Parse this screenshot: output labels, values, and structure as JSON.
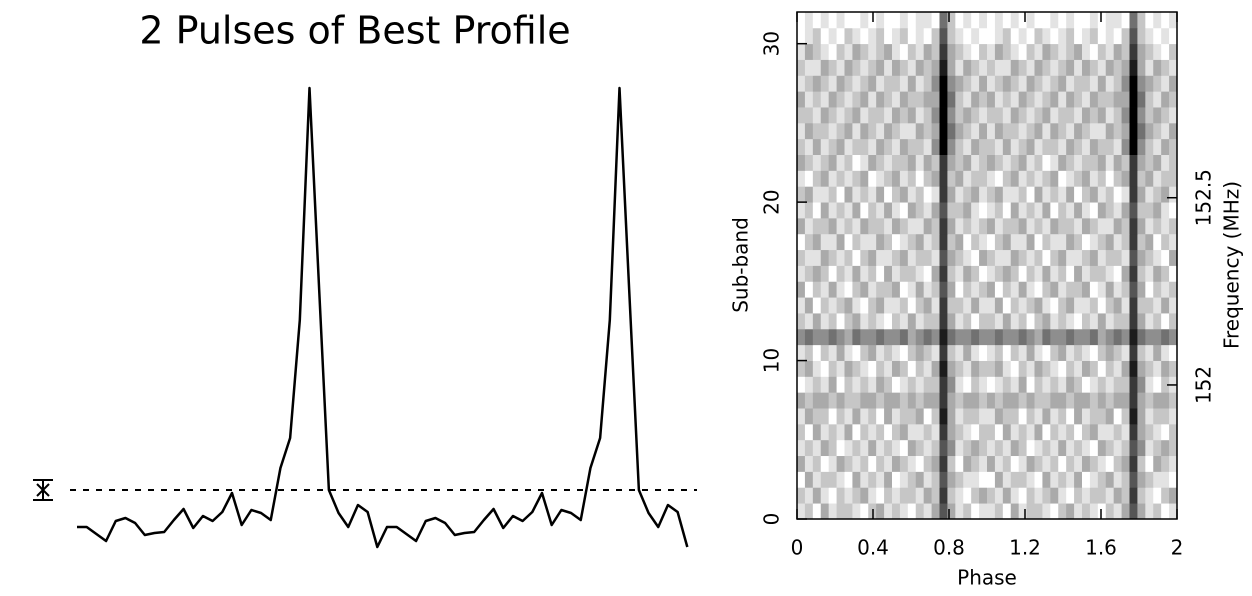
{
  "chart_data": [
    {
      "type": "line",
      "title": "2 Pulses of Best Profile",
      "color": "#000000",
      "xlim": [
        0,
        2
      ],
      "ylim": [
        0,
        470
      ],
      "baseline": 60,
      "error_bar": 10,
      "values": [
        23,
        23,
        16,
        9,
        29,
        32,
        27,
        15,
        17,
        18,
        30,
        41,
        22,
        34,
        29,
        38,
        57,
        25,
        40,
        37,
        30,
        82,
        112,
        230,
        462,
        260,
        60,
        37,
        23,
        45,
        38,
        3
      ]
    },
    {
      "type": "heatmap",
      "xlabel": "Phase",
      "ylabel": "Sub-band",
      "y2label": "Frequency (MHz)",
      "xlim": [
        0,
        2
      ],
      "xticks": [
        0,
        0.4,
        0.8,
        1.2,
        1.6,
        2
      ],
      "ylim": [
        0,
        32
      ],
      "yticks": [
        0,
        10,
        20,
        30
      ],
      "y2lim": [
        151.642,
        152.996
      ],
      "y2ticks": [
        152,
        152.5
      ],
      "zlim": [
        0,
        9
      ],
      "colormap": [
        "#ffffff",
        "#000000"
      ],
      "values": [
        [
          1,
          2,
          0,
          3,
          1,
          2,
          2,
          1,
          0,
          2,
          3,
          1,
          2,
          1,
          0,
          2,
          1,
          3,
          6,
          3,
          1,
          2,
          0,
          1
        ],
        [
          2,
          1,
          3,
          1,
          0,
          2,
          1,
          2,
          3,
          1,
          0,
          2,
          1,
          2,
          2,
          1,
          3,
          2,
          7,
          2,
          1,
          0,
          2,
          3
        ],
        [
          0,
          3,
          1,
          2,
          2,
          1,
          0,
          3,
          1,
          2,
          1,
          3,
          0,
          1,
          2,
          3,
          1,
          2,
          6,
          3,
          2,
          1,
          1,
          0
        ],
        [
          3,
          1,
          2,
          0,
          1,
          3,
          2,
          1,
          2,
          0,
          2,
          1,
          3,
          2,
          1,
          0,
          2,
          3,
          7,
          2,
          0,
          3,
          2,
          1
        ],
        [
          1,
          2,
          1,
          3,
          2,
          0,
          1,
          2,
          1,
          3,
          1,
          2,
          1,
          0,
          3,
          2,
          1,
          2,
          6,
          4,
          1,
          2,
          3,
          2
        ],
        [
          2,
          0,
          3,
          1,
          2,
          1,
          3,
          0,
          2,
          1,
          2,
          0,
          2,
          3,
          1,
          1,
          2,
          1,
          7,
          3,
          2,
          1,
          0,
          2
        ],
        [
          1,
          3,
          2,
          2,
          0,
          2,
          1,
          3,
          1,
          2,
          0,
          3,
          1,
          2,
          2,
          3,
          0,
          2,
          8,
          3,
          1,
          2,
          2,
          1
        ],
        [
          3,
          2,
          3,
          3,
          2,
          3,
          2,
          2,
          3,
          3,
          2,
          3,
          3,
          2,
          3,
          2,
          3,
          3,
          7,
          3,
          2,
          3,
          3,
          2
        ],
        [
          0,
          1,
          2,
          1,
          3,
          0,
          2,
          1,
          2,
          1,
          3,
          2,
          0,
          1,
          2,
          1,
          2,
          2,
          7,
          4,
          1,
          0,
          2,
          1
        ],
        [
          2,
          3,
          1,
          0,
          2,
          1,
          3,
          2,
          1,
          0,
          2,
          1,
          3,
          2,
          0,
          2,
          1,
          3,
          8,
          3,
          2,
          1,
          3,
          2
        ],
        [
          1,
          2,
          0,
          2,
          1,
          3,
          1,
          0,
          2,
          3,
          1,
          2,
          1,
          0,
          2,
          3,
          2,
          1,
          7,
          2,
          1,
          3,
          1,
          0
        ],
        [
          4,
          5,
          4,
          4,
          5,
          4,
          3,
          5,
          4,
          4,
          5,
          4,
          4,
          5,
          3,
          4,
          5,
          4,
          8,
          5,
          4,
          4,
          5,
          4
        ],
        [
          2,
          1,
          3,
          1,
          2,
          0,
          2,
          3,
          1,
          2,
          1,
          0,
          2,
          1,
          3,
          1,
          2,
          2,
          7,
          3,
          1,
          2,
          0,
          2
        ],
        [
          1,
          3,
          0,
          2,
          1,
          2,
          3,
          1,
          0,
          2,
          3,
          1,
          1,
          2,
          0,
          2,
          3,
          1,
          7,
          2,
          2,
          1,
          3,
          1
        ],
        [
          3,
          0,
          2,
          1,
          3,
          1,
          0,
          2,
          3,
          1,
          2,
          2,
          3,
          0,
          1,
          3,
          1,
          2,
          6,
          3,
          0,
          2,
          1,
          2
        ],
        [
          1,
          2,
          3,
          2,
          0,
          2,
          1,
          3,
          1,
          2,
          0,
          3,
          1,
          2,
          2,
          1,
          0,
          3,
          7,
          2,
          1,
          3,
          2,
          0
        ],
        [
          2,
          1,
          1,
          3,
          2,
          1,
          2,
          0,
          2,
          3,
          1,
          1,
          2,
          3,
          1,
          2,
          2,
          1,
          6,
          3,
          2,
          1,
          0,
          3
        ],
        [
          0,
          2,
          3,
          1,
          1,
          3,
          0,
          2,
          1,
          1,
          3,
          2,
          0,
          1,
          2,
          3,
          1,
          2,
          7,
          2,
          3,
          0,
          2,
          1
        ],
        [
          3,
          1,
          2,
          2,
          3,
          1,
          2,
          1,
          3,
          2,
          2,
          1,
          3,
          2,
          1,
          1,
          3,
          2,
          7,
          3,
          1,
          2,
          1,
          2
        ],
        [
          1,
          2,
          0,
          3,
          1,
          2,
          1,
          3,
          0,
          2,
          1,
          3,
          1,
          0,
          3,
          2,
          1,
          3,
          6,
          2,
          2,
          3,
          1,
          0
        ],
        [
          2,
          3,
          1,
          1,
          2,
          0,
          3,
          1,
          2,
          1,
          3,
          0,
          2,
          3,
          1,
          2,
          0,
          1,
          7,
          3,
          1,
          2,
          3,
          1
        ],
        [
          1,
          0,
          2,
          3,
          1,
          2,
          1,
          2,
          3,
          0,
          1,
          2,
          3,
          1,
          2,
          0,
          2,
          3,
          7,
          2,
          3,
          1,
          2,
          2
        ],
        [
          3,
          2,
          1,
          2,
          3,
          1,
          2,
          0,
          1,
          3,
          2,
          1,
          2,
          2,
          3,
          1,
          3,
          2,
          7,
          3,
          2,
          3,
          1,
          2
        ],
        [
          2,
          1,
          3,
          1,
          2,
          3,
          1,
          2,
          2,
          1,
          3,
          2,
          1,
          3,
          2,
          2,
          1,
          4,
          9,
          4,
          2,
          1,
          3,
          2
        ],
        [
          1,
          3,
          2,
          2,
          1,
          2,
          3,
          1,
          3,
          2,
          1,
          3,
          2,
          1,
          1,
          3,
          2,
          3,
          9,
          5,
          3,
          2,
          1,
          3
        ],
        [
          2,
          2,
          1,
          3,
          2,
          1,
          2,
          3,
          1,
          2,
          2,
          1,
          3,
          2,
          3,
          1,
          2,
          4,
          9,
          4,
          2,
          3,
          2,
          1
        ],
        [
          3,
          1,
          2,
          1,
          3,
          2,
          1,
          2,
          3,
          1,
          3,
          2,
          1,
          3,
          2,
          2,
          3,
          3,
          9,
          5,
          2,
          1,
          3,
          2
        ],
        [
          1,
          2,
          3,
          2,
          1,
          3,
          2,
          1,
          2,
          3,
          1,
          2,
          2,
          1,
          3,
          1,
          2,
          4,
          9,
          4,
          3,
          2,
          1,
          3
        ],
        [
          2,
          1,
          1,
          3,
          2,
          1,
          3,
          2,
          1,
          2,
          3,
          1,
          3,
          2,
          1,
          3,
          2,
          3,
          8,
          3,
          1,
          3,
          2,
          1
        ],
        [
          1,
          3,
          2,
          1,
          0,
          2,
          1,
          3,
          2,
          1,
          2,
          3,
          1,
          0,
          2,
          1,
          3,
          2,
          7,
          3,
          2,
          1,
          0,
          2
        ],
        [
          0,
          1,
          2,
          0,
          1,
          0,
          2,
          1,
          0,
          1,
          2,
          0,
          1,
          2,
          0,
          1,
          0,
          2,
          6,
          2,
          1,
          0,
          1,
          0
        ],
        [
          0,
          1,
          0,
          1,
          0,
          1,
          0,
          0,
          1,
          0,
          1,
          0,
          0,
          1,
          0,
          1,
          1,
          0,
          5,
          2,
          0,
          1,
          0,
          1
        ]
      ]
    }
  ]
}
